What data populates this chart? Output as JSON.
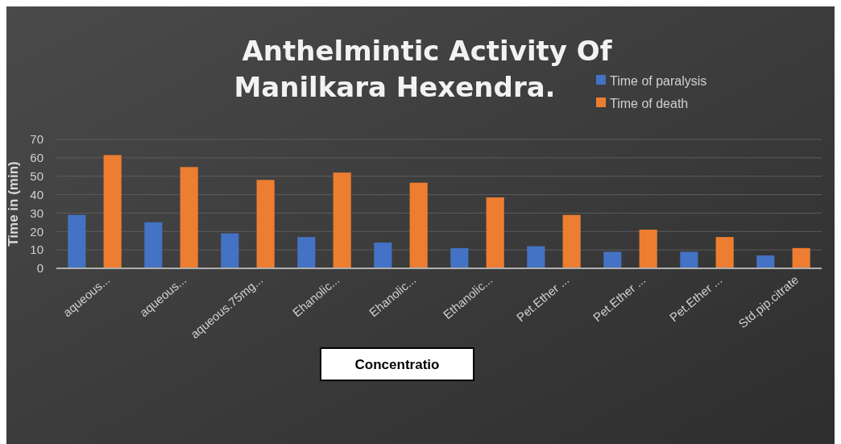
{
  "chart_data": {
    "type": "bar",
    "title": "Anthelmintic Activity Of Manilkara Hexendra.",
    "xlabel": "Concentratio",
    "ylabel": "Time in (min)",
    "categories": [
      "aqueous...",
      "aqueous...",
      "aqueous.75mg...",
      "Ehanolic...",
      "Ehanolic...",
      "Ethanolic...",
      "Pet.Ether ...",
      "Pet.Ether ...",
      "Pet.Ether ...",
      "Std.pip.citrate"
    ],
    "series": [
      {
        "name": "Time of paralysis",
        "color": "#4472c4",
        "values": [
          29,
          25,
          19,
          17,
          14,
          11,
          12,
          9,
          9,
          7
        ]
      },
      {
        "name": "Time of death",
        "color": "#ed7d31",
        "values": [
          61.5,
          55,
          48,
          52,
          46.5,
          38.5,
          29,
          21,
          17,
          11
        ]
      }
    ],
    "ylim": [
      0,
      70
    ],
    "yticks": [
      0,
      10,
      20,
      30,
      40,
      50,
      60,
      70
    ],
    "grid": "y",
    "legend": "top right"
  }
}
